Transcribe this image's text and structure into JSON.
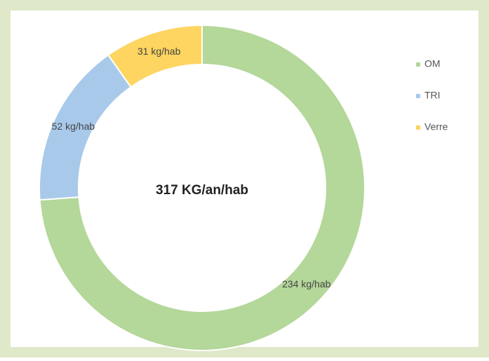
{
  "chart_data": {
    "type": "pie",
    "categories": [
      "OM",
      "TRI",
      "Verre"
    ],
    "values": [
      234,
      52,
      31
    ],
    "value_labels": [
      "234 kg/hab",
      "52 kg/hab",
      "31 kg/hab"
    ],
    "colors": [
      "#b4d79a",
      "#a8c9ea",
      "#fdd560"
    ],
    "center_label": "317 KG/an/hab",
    "legend": "right"
  }
}
